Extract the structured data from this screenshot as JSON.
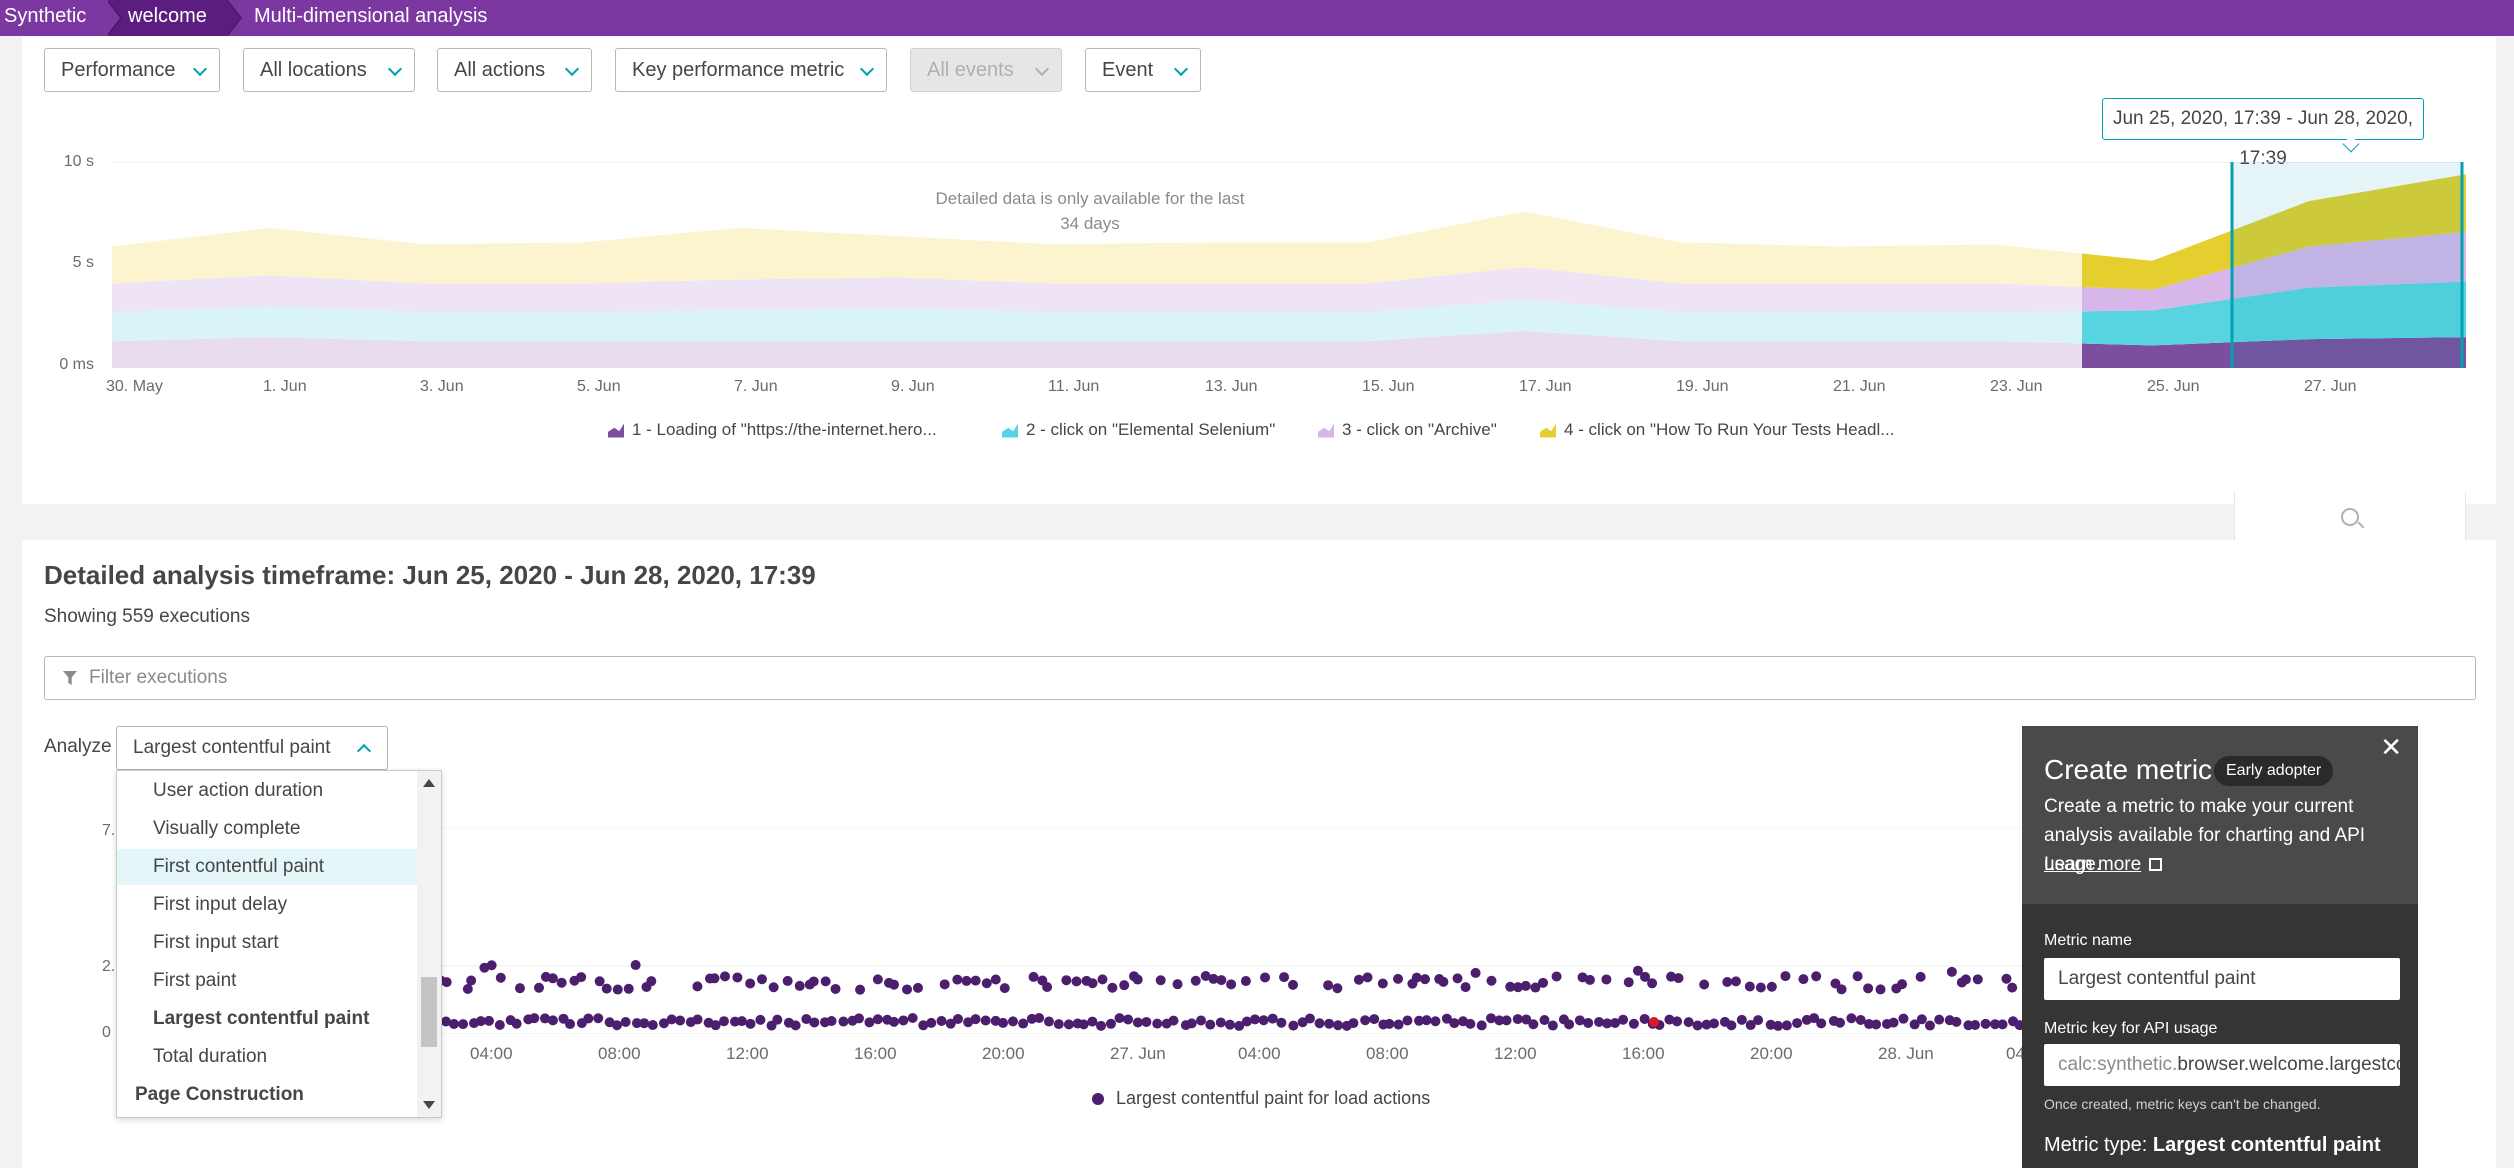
{
  "breadcrumb": [
    "Synthetic",
    "welcome",
    "Multi-dimensional analysis"
  ],
  "filters": [
    {
      "label": "Performance",
      "disabled": false
    },
    {
      "label": "All locations",
      "disabled": false
    },
    {
      "label": "All actions",
      "disabled": false
    },
    {
      "label": "Key performance metric",
      "disabled": false
    },
    {
      "label": "All events",
      "disabled": true
    },
    {
      "label": "Event",
      "disabled": false
    }
  ],
  "timeframe_tooltip": "Jun 25, 2020, 17:39 - Jun 28, 2020, 17:39",
  "top_chart": {
    "note_line1": "Detailed data is only available for the last",
    "note_line2": "34 days",
    "y_ticks": [
      "10 s",
      "5 s",
      "0 ms"
    ],
    "x_ticks": [
      "30. May",
      "1. Jun",
      "3. Jun",
      "5. Jun",
      "7. Jun",
      "9. Jun",
      "11. Jun",
      "13. Jun",
      "15. Jun",
      "17. Jun",
      "19. Jun",
      "21. Jun",
      "23. Jun",
      "25. Jun",
      "27. Jun"
    ],
    "legend": [
      {
        "label": "1 - Loading of \"https://the-internet.hero...",
        "color": "#7c4f9e"
      },
      {
        "label": "2 - click on \"Elemental Selenium\"",
        "color": "#58d4e0"
      },
      {
        "label": "3 - click on \"Archive\"",
        "color": "#d7b6ea"
      },
      {
        "label": "4 - click on \"How To Run Your Tests Headl...",
        "color": "#e4cf2e"
      }
    ]
  },
  "chart_data": {
    "type": "area",
    "title": "",
    "xlabel": "",
    "ylabel": "",
    "y_unit": "s",
    "ylim": [
      0,
      10
    ],
    "stacked": true,
    "categories": [
      "30. May",
      "1. Jun",
      "3. Jun",
      "5. Jun",
      "7. Jun",
      "9. Jun",
      "11. Jun",
      "13. Jun",
      "15. Jun",
      "17. Jun",
      "19. Jun",
      "21. Jun",
      "23. Jun",
      "25. Jun",
      "27. Jun",
      "28. Jun"
    ],
    "series": [
      {
        "name": "1 - Loading of \"https://the-internet.hero...",
        "values": [
          1.3,
          1.5,
          1.3,
          1.3,
          1.3,
          1.3,
          1.3,
          1.3,
          1.3,
          1.8,
          1.3,
          1.3,
          1.3,
          1.1,
          1.4,
          1.5
        ]
      },
      {
        "name": "2 - click on \"Elemental Selenium\"",
        "values": [
          1.4,
          1.5,
          1.4,
          1.4,
          1.5,
          1.6,
          1.4,
          1.4,
          1.4,
          1.5,
          1.4,
          1.4,
          1.4,
          1.7,
          2.5,
          2.7
        ]
      },
      {
        "name": "3 - click on \"Archive\"",
        "values": [
          1.4,
          1.5,
          1.4,
          1.4,
          1.5,
          1.5,
          1.4,
          1.4,
          1.4,
          1.6,
          1.4,
          1.4,
          1.4,
          1.0,
          2.0,
          2.4
        ]
      },
      {
        "name": "4 - click on \"How To Run Your Tests Headl...",
        "values": [
          1.8,
          2.3,
          1.9,
          2.0,
          2.5,
          2.0,
          1.9,
          2.0,
          2.0,
          2.7,
          2.0,
          1.8,
          1.9,
          1.4,
          2.2,
          2.8
        ]
      }
    ]
  },
  "details": {
    "heading": "Detailed analysis timeframe: Jun 25, 2020 - Jun 28, 2020, 17:39",
    "showing": "Showing 559 executions",
    "filter_placeholder": "Filter executions",
    "analyze_label": "Analyze",
    "analyze_value": "Largest contentful paint",
    "menu": [
      {
        "label": "User action duration",
        "type": "item"
      },
      {
        "label": "Visually complete",
        "type": "item"
      },
      {
        "label": "First contentful paint",
        "type": "highlight"
      },
      {
        "label": "First input delay",
        "type": "item"
      },
      {
        "label": "First input start",
        "type": "item"
      },
      {
        "label": "First paint",
        "type": "item"
      },
      {
        "label": "Largest contentful paint",
        "type": "selected"
      },
      {
        "label": "Total duration",
        "type": "item"
      },
      {
        "label": "Page Construction",
        "type": "group"
      }
    ],
    "y_ticks": [
      "7.",
      "2.",
      "0"
    ],
    "x_ticks": [
      "04:00",
      "08:00",
      "12:00",
      "16:00",
      "20:00",
      "27. Jun",
      "04:00",
      "08:00",
      "12:00",
      "16:00",
      "20:00",
      "28. Jun",
      "04"
    ],
    "legend": "Largest contentful paint for load actions"
  },
  "create_metric": {
    "title": "Create metric",
    "badge": "Early adopter",
    "close": "✕",
    "description": "Create a metric to make your current analysis available for charting and API usage.",
    "learn_more": "Learn more",
    "name_label": "Metric name",
    "name_value": "Largest contentful paint",
    "key_label": "Metric key for API usage",
    "key_prefix": "calc:synthetic.",
    "key_value": "browser.welcome.largestcont",
    "key_note": "Once created, metric keys can't be changed.",
    "type_label": "Metric type:",
    "type_value": "Largest contentful paint"
  }
}
